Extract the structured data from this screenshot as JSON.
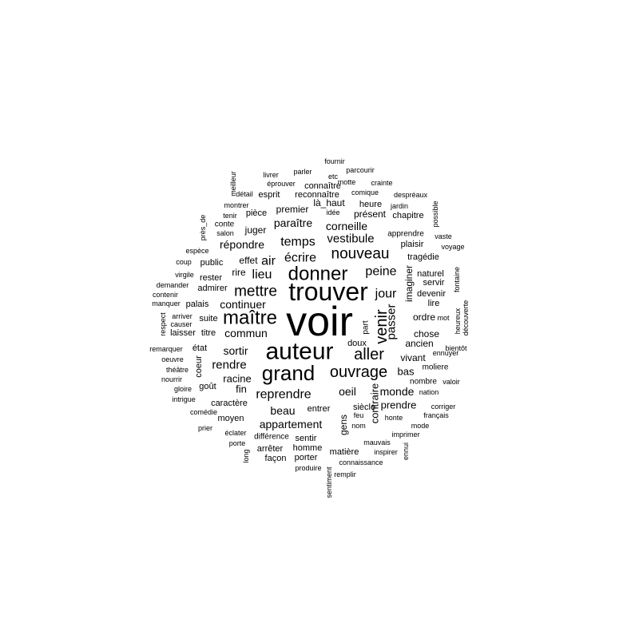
{
  "word_cloud": {
    "color": "#000000",
    "background": "#ffffff",
    "words": [
      "voir",
      "trouver",
      "auteur",
      "grand",
      "donner",
      "maître",
      "ouvrage",
      "aller",
      "mettre",
      "venir",
      "nouveau",
      "écrire",
      "temps",
      "vestibule",
      "corneille",
      "paraître",
      "air",
      "lieu",
      "jour",
      "peine",
      "reprendre",
      "passer",
      "appartement",
      "rendre",
      "commun",
      "continuer",
      "oeil",
      "monde",
      "contraire",
      "répondre",
      "sortir",
      "beau",
      "juger",
      "premier",
      "présent",
      "là_haut",
      "rire",
      "effet",
      "ancien",
      "racine",
      "imaginer",
      "vivant",
      "bas",
      "prendre",
      "chose",
      "ordre",
      "fin",
      "gens",
      "entrer",
      "siècle",
      "moyen",
      "porter",
      "homme",
      "sentir",
      "différence",
      "façon",
      "arrêter",
      "matière",
      "caractère",
      "goût",
      "public",
      "rester",
      "admirer",
      "palais",
      "suite",
      "titre",
      "laisser",
      "état",
      "coeur",
      "esprit",
      "connaître",
      "reconnaître",
      "heure",
      "chapitre",
      "plaisir",
      "tragédie",
      "servir",
      "naturel",
      "devenir",
      "lire",
      "doux",
      "part",
      "apprendre",
      "moliere",
      "nombre",
      "valoir",
      "nation",
      "honte",
      "mode",
      "corriger",
      "français",
      "imprimer",
      "mauvais",
      "inspirer",
      "ennui",
      "connaissance",
      "produire",
      "remplir",
      "sentiment",
      "feu",
      "nom",
      "long",
      "porte",
      "éclater",
      "prier",
      "comédie",
      "intrigue",
      "gloire",
      "nourrir",
      "théâtre",
      "oeuvre",
      "remarquer",
      "respect",
      "arriver",
      "causer",
      "manquer",
      "contenir",
      "demander",
      "virgile",
      "coup",
      "espèce",
      "près_de",
      "salon",
      "tenir",
      "conte",
      "montrer",
      "détail",
      "meilleur",
      "pièce",
      "livrer",
      "éprouver",
      "parler",
      "etc",
      "fournir",
      "parcourir",
      "motte",
      "crainte",
      "comique",
      "idée",
      "jardin",
      "despréaux",
      "possible",
      "vaste",
      "voyage",
      "fontaine",
      "découverte",
      "heureux",
      "mot",
      "bientôt",
      "ennuyer"
    ]
  }
}
